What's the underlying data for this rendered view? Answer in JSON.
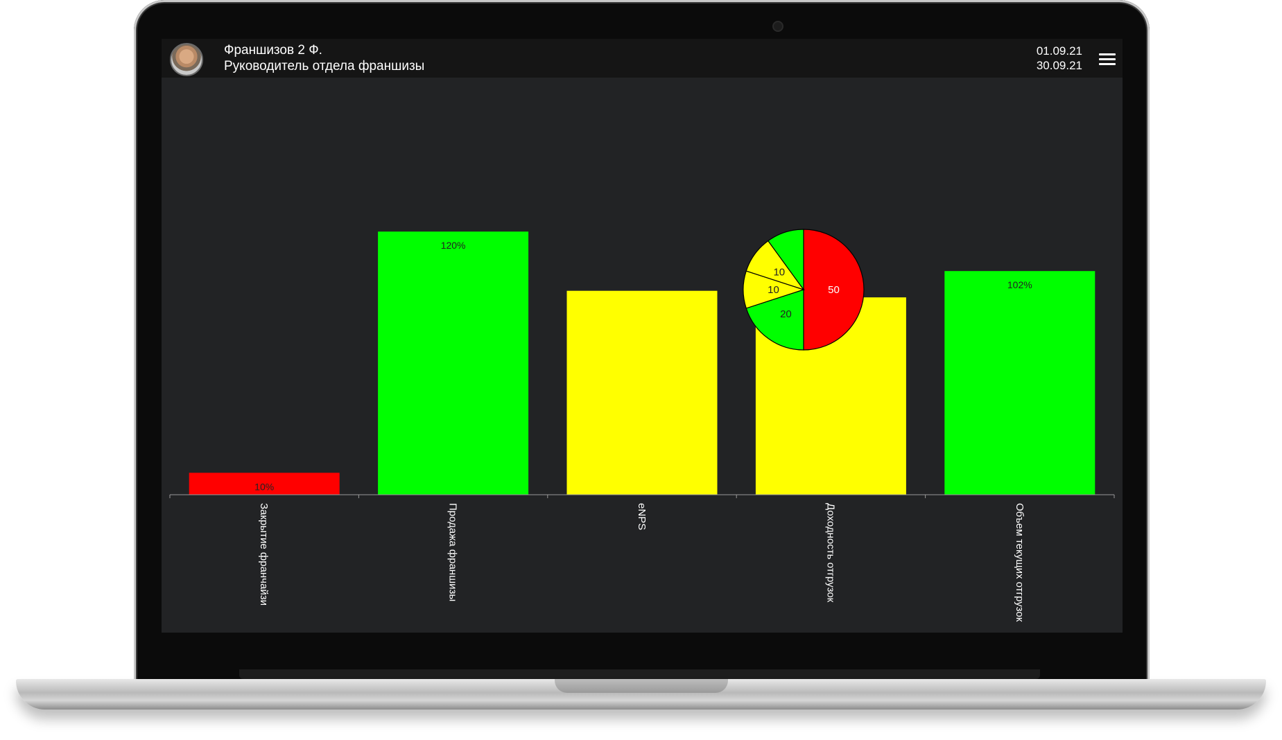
{
  "header": {
    "user_name": "Франшизов 2 Ф.",
    "user_role": "Руководитель отдела франшизы",
    "date_from": "01.09.21",
    "date_to": "30.09.21",
    "menu_icon": "hamburger-menu-icon",
    "avatar_icon": "user-avatar"
  },
  "colors": {
    "background": "#222325",
    "topbar": "#151515",
    "red": "#ff0000",
    "green": "#00ff00",
    "yellow": "#ffff00"
  },
  "chart_data": [
    {
      "type": "bar",
      "categories": [
        "Закрытие франчайзи",
        "Продажа франшизы",
        "eNPS",
        "Доходность отгрузок",
        "Объем текущих отгрузок"
      ],
      "values": [
        10,
        120,
        93,
        90,
        102
      ],
      "labels": [
        "10%",
        "120%",
        "",
        "90%",
        "102%"
      ],
      "colors": [
        "#ff0000",
        "#00ff00",
        "#ffff00",
        "#ffff00",
        "#00ff00"
      ],
      "ylim": [
        0,
        170
      ],
      "grid": false
    },
    {
      "type": "pie",
      "values": [
        50,
        20,
        10,
        10,
        10
      ],
      "labels": [
        "50",
        "20",
        "10",
        "10",
        ""
      ],
      "colors": [
        "#ff0000",
        "#00ff00",
        "#ffff00",
        "#ffff00",
        "#00ff00"
      ]
    }
  ]
}
